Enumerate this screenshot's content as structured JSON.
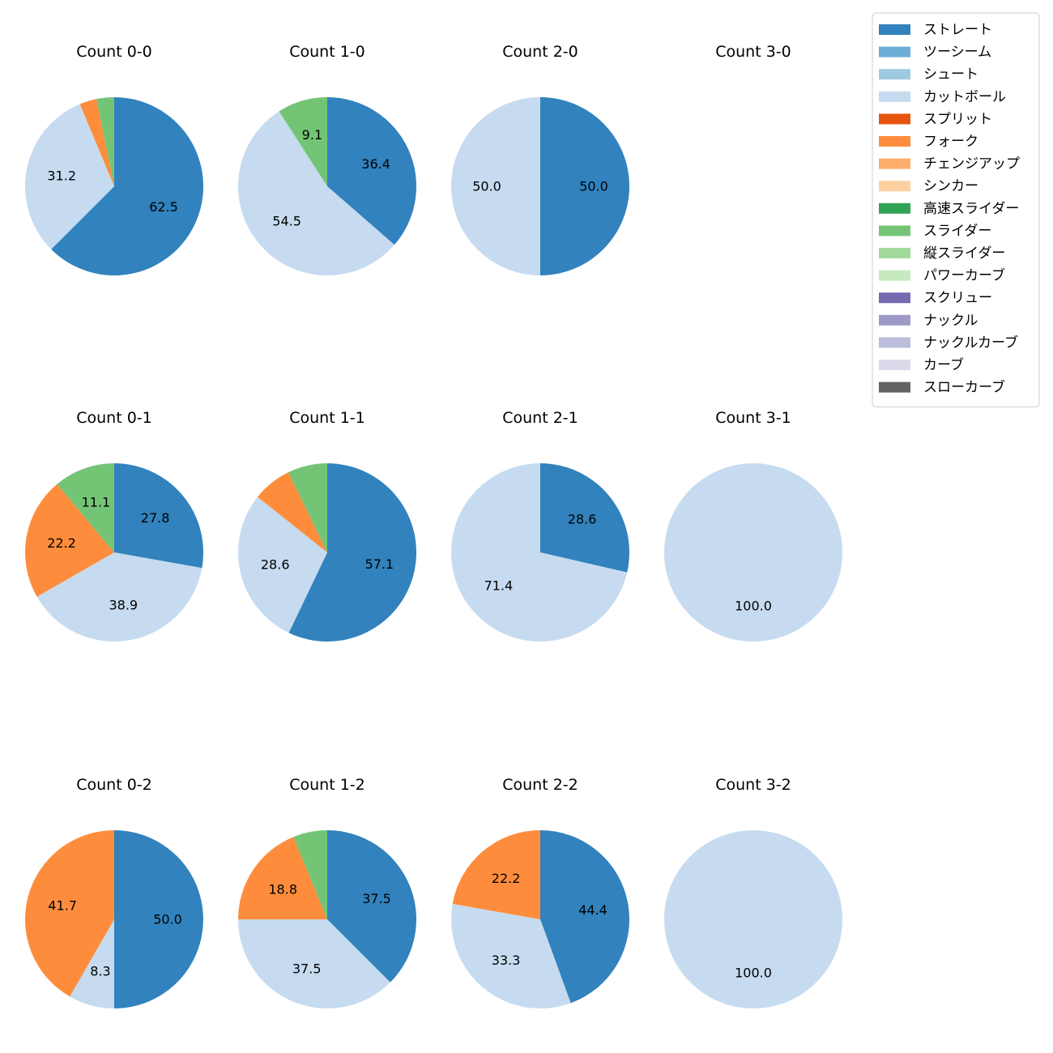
{
  "chart_data": {
    "type": "pie",
    "legend_position": "top-right",
    "colors": {
      "ストレート": "#3182bd",
      "ツーシーム": "#6baed6",
      "シュート": "#9ecae1",
      "カットボール": "#c6dbef",
      "スプリット": "#e6550d",
      "フォーク": "#fd8d3c",
      "チェンジアップ": "#fdae6b",
      "シンカー": "#fdd0a2",
      "高速スライダー": "#31a354",
      "スライダー": "#74c476",
      "縦スライダー": "#a1d99b",
      "パワーカーブ": "#c7e9c0",
      "スクリュー": "#756bb1",
      "ナックル": "#9e9ac8",
      "ナックルカーブ": "#bcbddc",
      "カーブ": "#dadaeb",
      "スローカーブ": "#636363"
    },
    "legend": [
      "ストレート",
      "ツーシーム",
      "シュート",
      "カットボール",
      "スプリット",
      "フォーク",
      "チェンジアップ",
      "シンカー",
      "高速スライダー",
      "スライダー",
      "縦スライダー",
      "パワーカーブ",
      "スクリュー",
      "ナックル",
      "ナックルカーブ",
      "カーブ",
      "スローカーブ"
    ],
    "panels": [
      {
        "title": "Count 0-0",
        "slices": [
          {
            "pitch": "ストレート",
            "value": 62.5,
            "label": "62.5"
          },
          {
            "pitch": "カットボール",
            "value": 31.2,
            "label": "31.2"
          },
          {
            "pitch": "フォーク",
            "value": 3.1,
            "label": ""
          },
          {
            "pitch": "スライダー",
            "value": 3.2,
            "label": ""
          }
        ]
      },
      {
        "title": "Count 1-0",
        "slices": [
          {
            "pitch": "ストレート",
            "value": 36.4,
            "label": "36.4"
          },
          {
            "pitch": "カットボール",
            "value": 54.5,
            "label": "54.5"
          },
          {
            "pitch": "スライダー",
            "value": 9.1,
            "label": "9.1"
          }
        ]
      },
      {
        "title": "Count 2-0",
        "slices": [
          {
            "pitch": "ストレート",
            "value": 50.0,
            "label": "50.0"
          },
          {
            "pitch": "カットボール",
            "value": 50.0,
            "label": "50.0"
          }
        ]
      },
      {
        "title": "Count 3-0",
        "slices": []
      },
      {
        "title": "Count 0-1",
        "slices": [
          {
            "pitch": "ストレート",
            "value": 27.8,
            "label": "27.8"
          },
          {
            "pitch": "カットボール",
            "value": 38.9,
            "label": "38.9"
          },
          {
            "pitch": "フォーク",
            "value": 22.2,
            "label": "22.2"
          },
          {
            "pitch": "スライダー",
            "value": 11.1,
            "label": "11.1"
          }
        ]
      },
      {
        "title": "Count 1-1",
        "slices": [
          {
            "pitch": "ストレート",
            "value": 57.1,
            "label": "57.1"
          },
          {
            "pitch": "カットボール",
            "value": 28.6,
            "label": "28.6"
          },
          {
            "pitch": "フォーク",
            "value": 7.1,
            "label": ""
          },
          {
            "pitch": "スライダー",
            "value": 7.2,
            "label": ""
          }
        ]
      },
      {
        "title": "Count 2-1",
        "slices": [
          {
            "pitch": "ストレート",
            "value": 28.6,
            "label": "28.6"
          },
          {
            "pitch": "カットボール",
            "value": 71.4,
            "label": "71.4"
          }
        ]
      },
      {
        "title": "Count 3-1",
        "slices": [
          {
            "pitch": "カットボール",
            "value": 100.0,
            "label": "100.0"
          }
        ]
      },
      {
        "title": "Count 0-2",
        "slices": [
          {
            "pitch": "ストレート",
            "value": 50.0,
            "label": "50.0"
          },
          {
            "pitch": "カットボール",
            "value": 8.3,
            "label": "8.3"
          },
          {
            "pitch": "フォーク",
            "value": 41.7,
            "label": "41.7"
          }
        ]
      },
      {
        "title": "Count 1-2",
        "slices": [
          {
            "pitch": "ストレート",
            "value": 37.5,
            "label": "37.5"
          },
          {
            "pitch": "カットボール",
            "value": 37.5,
            "label": "37.5"
          },
          {
            "pitch": "フォーク",
            "value": 18.8,
            "label": "18.8"
          },
          {
            "pitch": "スライダー",
            "value": 6.2,
            "label": ""
          }
        ]
      },
      {
        "title": "Count 2-2",
        "slices": [
          {
            "pitch": "ストレート",
            "value": 44.4,
            "label": "44.4"
          },
          {
            "pitch": "カットボール",
            "value": 33.3,
            "label": "33.3"
          },
          {
            "pitch": "フォーク",
            "value": 22.2,
            "label": "22.2"
          }
        ]
      },
      {
        "title": "Count 3-2",
        "slices": [
          {
            "pitch": "カットボール",
            "value": 100.0,
            "label": "100.0"
          }
        ]
      }
    ]
  }
}
